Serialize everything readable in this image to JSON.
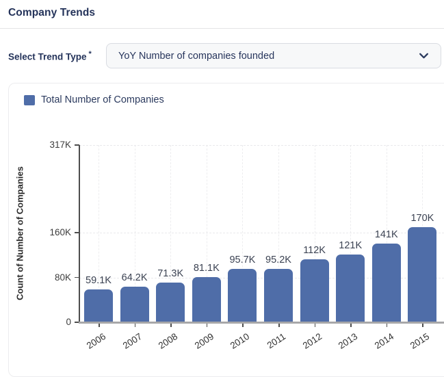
{
  "header": {
    "title": "Company Trends"
  },
  "form": {
    "label": "Select Trend Type",
    "required_marker": "*",
    "select_value": "YoY Number of companies founded",
    "chevron_icon": "chevron-down"
  },
  "colors": {
    "bar": "#4f6da8",
    "navy_text": "#24335a",
    "axis_line": "#4d4d4d",
    "baseline": "#a7a7a9",
    "gridline": "#e9e9eb",
    "select_bg": "#f7f8f9",
    "select_border": "#d9dce2",
    "card_border": "#ececee"
  },
  "chart_data": {
    "type": "bar",
    "title": "",
    "legend": "Total Number of Companies",
    "series_name": "Total Number of Companies",
    "categories": [
      "2006",
      "2007",
      "2008",
      "2009",
      "2010",
      "2011",
      "2012",
      "2013",
      "2014",
      "2015"
    ],
    "values": [
      59100,
      64200,
      71300,
      81100,
      95700,
      95200,
      112000,
      121000,
      141000,
      170000
    ],
    "value_labels": [
      "59.1K",
      "64.2K",
      "71.3K",
      "81.1K",
      "95.7K",
      "95.2K",
      "112K",
      "121K",
      "141K",
      "170K"
    ],
    "xlabel": "",
    "ylabel": "Count of Number of Companies",
    "ylim": [
      0,
      317000
    ],
    "yticks": [
      {
        "value": 0,
        "label": "0"
      },
      {
        "value": 80000,
        "label": "80K"
      },
      {
        "value": 160000,
        "label": "160K"
      },
      {
        "value": 317000,
        "label": "317K"
      }
    ],
    "grid": "dashed horizontal at yticks and vertical at category centers",
    "legend_position": "top-left",
    "bar_color": "#4f6da8"
  }
}
